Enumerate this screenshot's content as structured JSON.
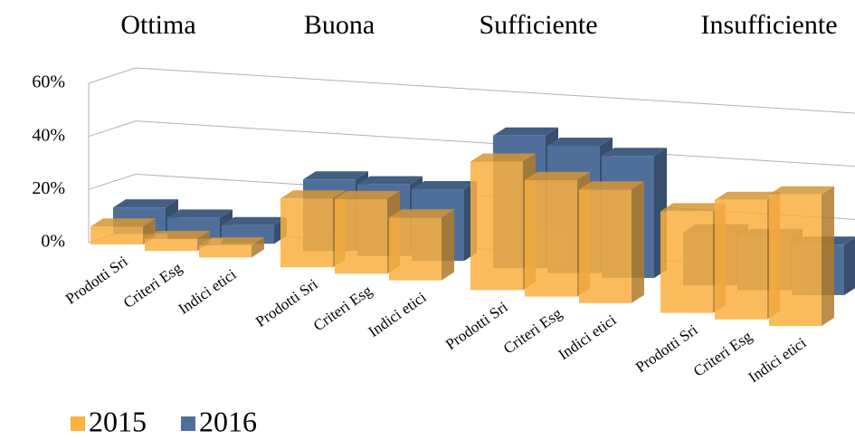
{
  "chart_data": {
    "type": "bar3d",
    "groups": [
      "Ottima",
      "Buona",
      "Sufficiente",
      "Insufficiente"
    ],
    "categories": [
      "Prodotti Sri",
      "Criteri Esg",
      "Indici etici",
      "Prodotti Sri",
      "Criteri Esg",
      "Indici etici",
      "Prodotti Sri",
      "Criteri Esg",
      "Indici etici",
      "Prodotti Sri",
      "Criteri Esg",
      "Indici etici"
    ],
    "series": [
      {
        "name": "2015",
        "color": "#fbb040",
        "values": [
          6,
          4,
          4,
          23,
          25,
          21,
          43,
          39,
          38,
          34,
          40,
          44
        ]
      },
      {
        "name": "2016",
        "color": "#4f6f9a",
        "values": [
          10,
          8,
          7,
          27,
          27,
          27,
          50,
          48,
          46,
          20,
          20,
          19
        ]
      }
    ],
    "ylim": [
      0,
      60
    ],
    "yticks": [
      {
        "value": 0,
        "label": "0%"
      },
      {
        "value": 20,
        "label": "20%"
      },
      {
        "value": 40,
        "label": "40%"
      },
      {
        "value": 60,
        "label": "60%"
      }
    ],
    "grid": true,
    "legend": "bottom-left"
  }
}
